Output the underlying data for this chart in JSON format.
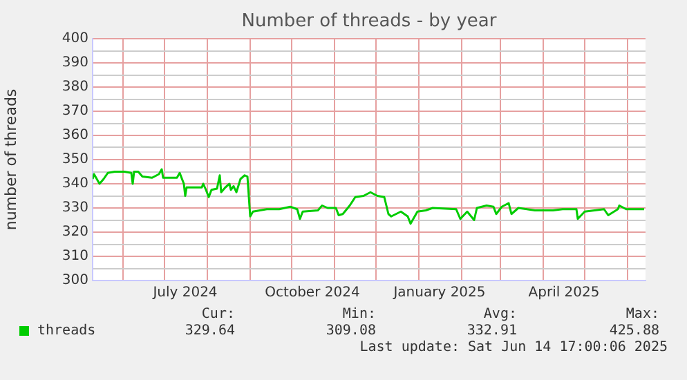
{
  "chart_data": {
    "type": "line",
    "title": "Number of threads - by year",
    "ylabel": "number of threads",
    "x": [
      "2024-05-10",
      "2024-05-11",
      "2024-05-15",
      "2024-05-18",
      "2024-05-21",
      "2024-05-26",
      "2024-06-02",
      "2024-06-07",
      "2024-06-08",
      "2024-06-09",
      "2024-06-12",
      "2024-06-15",
      "2024-06-22",
      "2024-06-27",
      "2024-06-29",
      "2024-06-30",
      "2024-07-10",
      "2024-07-12",
      "2024-07-15",
      "2024-07-16",
      "2024-07-17",
      "2024-07-28",
      "2024-07-29",
      "2024-07-31",
      "2024-08-02",
      "2024-08-04",
      "2024-08-08",
      "2024-08-10",
      "2024-08-11",
      "2024-08-14",
      "2024-08-17",
      "2024-08-18",
      "2024-08-20",
      "2024-08-22",
      "2024-08-25",
      "2024-08-28",
      "2024-08-30",
      "2024-09-01",
      "2024-09-03",
      "2024-09-13",
      "2024-09-22",
      "2024-09-30",
      "2024-10-05",
      "2024-10-07",
      "2024-10-09",
      "2024-10-20",
      "2024-10-23",
      "2024-10-27",
      "2024-11-02",
      "2024-11-04",
      "2024-11-07",
      "2024-11-12",
      "2024-11-16",
      "2024-11-22",
      "2024-11-27",
      "2024-12-02",
      "2024-12-07",
      "2024-12-10",
      "2024-12-12",
      "2024-12-19",
      "2024-12-24",
      "2024-12-26",
      "2024-12-31",
      "2025-01-06",
      "2025-01-11",
      "2025-01-28",
      "2025-01-31",
      "2025-02-05",
      "2025-02-10",
      "2025-02-12",
      "2025-02-19",
      "2025-02-24",
      "2025-02-26",
      "2025-03-02",
      "2025-03-07",
      "2025-03-09",
      "2025-03-14",
      "2025-03-26",
      "2025-04-08",
      "2025-04-15",
      "2025-04-25",
      "2025-04-26",
      "2025-05-01",
      "2025-05-15",
      "2025-05-18",
      "2025-05-25",
      "2025-05-26",
      "2025-05-31",
      "2025-06-07",
      "2025-06-13"
    ],
    "series": [
      {
        "name": "threads",
        "color": "#00cc00",
        "values": [
          342,
          344,
          340,
          342,
          344.5,
          345,
          345,
          344.5,
          340,
          345,
          345,
          343,
          342.5,
          344,
          346,
          342.5,
          342.5,
          344.5,
          340,
          335,
          338.5,
          338.5,
          340,
          337.5,
          334.5,
          337.5,
          338,
          343.5,
          336.5,
          338.5,
          340,
          337.5,
          339,
          336.5,
          342,
          343.5,
          343,
          326.5,
          328.5,
          329.5,
          329.5,
          330.5,
          329.5,
          325.5,
          328.5,
          329,
          331,
          330,
          330,
          327,
          327.5,
          331,
          334.5,
          335,
          336.5,
          335,
          334.5,
          327.5,
          326.5,
          328.5,
          326.5,
          323.5,
          328.5,
          329,
          330,
          329.5,
          325.5,
          328.5,
          325,
          330,
          331,
          330.5,
          327.5,
          330.5,
          332,
          327.5,
          330,
          329,
          329,
          329.5,
          329.5,
          325.5,
          328.5,
          329.5,
          327,
          329.5,
          331,
          329.5,
          329.5,
          329.5
        ]
      }
    ],
    "xlim": [
      "2024-05-10",
      "2025-06-14"
    ],
    "xticks": [
      {
        "value": "2024-06-01",
        "label": null
      },
      {
        "value": "2024-07-01",
        "label": null
      },
      {
        "value": "2024-07-16",
        "label": "July 2024"
      },
      {
        "value": "2024-08-01",
        "label": null
      },
      {
        "value": "2024-09-01",
        "label": null
      },
      {
        "value": "2024-10-01",
        "label": null
      },
      {
        "value": "2024-10-16",
        "label": "October 2024"
      },
      {
        "value": "2024-11-01",
        "label": null
      },
      {
        "value": "2024-12-01",
        "label": null
      },
      {
        "value": "2025-01-01",
        "label": null
      },
      {
        "value": "2025-01-16",
        "label": "January 2025"
      },
      {
        "value": "2025-02-01",
        "label": null
      },
      {
        "value": "2025-03-01",
        "label": null
      },
      {
        "value": "2025-04-01",
        "label": null
      },
      {
        "value": "2025-04-16",
        "label": "April 2025"
      },
      {
        "value": "2025-05-01",
        "label": null
      },
      {
        "value": "2025-06-01",
        "label": null
      }
    ],
    "ylim": [
      300,
      400
    ],
    "yticks": [
      300,
      {
        "value": 305,
        "label": null
      },
      310,
      {
        "value": 315,
        "label": null
      },
      320,
      {
        "value": 325,
        "label": null
      },
      330,
      {
        "value": 335,
        "label": null
      },
      340,
      {
        "value": 345,
        "label": null
      },
      350,
      {
        "value": 355,
        "label": null
      },
      360,
      {
        "value": 365,
        "label": null
      },
      370,
      {
        "value": 375,
        "label": null
      },
      380,
      {
        "value": 385,
        "label": null
      },
      390,
      {
        "value": 395,
        "label": null
      },
      400
    ],
    "grid": true,
    "legend": "bottom left",
    "marker": "none",
    "line_style": "solid",
    "annotations": [
      "Cur:",
      "Min:",
      "Avg:",
      "Max:",
      "329.64",
      "309.08",
      "332.91",
      "425.88",
      "Last update: Sat Jun 14 17:00:06 2025"
    ]
  }
}
